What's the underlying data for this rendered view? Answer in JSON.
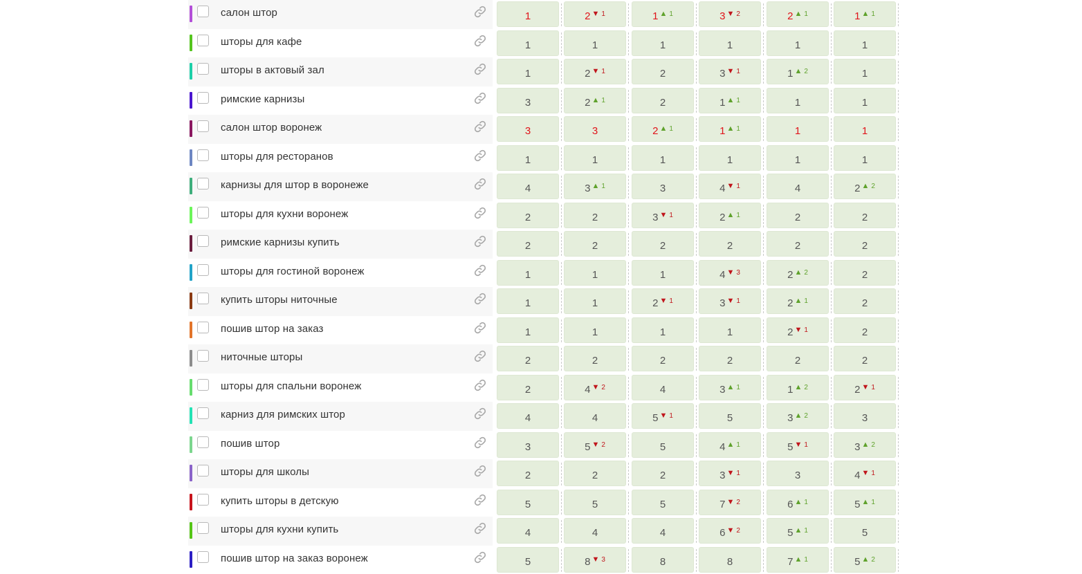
{
  "colors": {
    "cell_bg": "#e5eedc",
    "top_position": "#e0141a",
    "up": "#5fa22c",
    "down": "#c0161c"
  },
  "icons": {
    "link": "link-icon",
    "up": "triangle-up-icon",
    "down": "triangle-down-icon"
  },
  "rows": [
    {
      "keyword": "салон штор",
      "color": "#b34fd8",
      "cells": [
        {
          "pos": "1",
          "dir": "",
          "delta": ""
        },
        {
          "pos": "2",
          "dir": "down",
          "delta": "1"
        },
        {
          "pos": "1",
          "dir": "up",
          "delta": "1"
        },
        {
          "pos": "3",
          "dir": "down",
          "delta": "2"
        },
        {
          "pos": "2",
          "dir": "up",
          "delta": "1"
        },
        {
          "pos": "1",
          "dir": "up",
          "delta": "1"
        }
      ]
    },
    {
      "keyword": "шторы для кафе",
      "color": "#55c51e",
      "cells": [
        {
          "pos": "1",
          "dir": "",
          "delta": ""
        },
        {
          "pos": "1",
          "dir": "",
          "delta": ""
        },
        {
          "pos": "1",
          "dir": "",
          "delta": ""
        },
        {
          "pos": "1",
          "dir": "",
          "delta": ""
        },
        {
          "pos": "1",
          "dir": "",
          "delta": ""
        },
        {
          "pos": "1",
          "dir": "",
          "delta": ""
        }
      ]
    },
    {
      "keyword": "шторы в актовый зал",
      "color": "#1ccfa8",
      "cells": [
        {
          "pos": "1",
          "dir": "",
          "delta": ""
        },
        {
          "pos": "2",
          "dir": "down",
          "delta": "1"
        },
        {
          "pos": "2",
          "dir": "",
          "delta": ""
        },
        {
          "pos": "3",
          "dir": "down",
          "delta": "1"
        },
        {
          "pos": "1",
          "dir": "up",
          "delta": "2"
        },
        {
          "pos": "1",
          "dir": "",
          "delta": ""
        }
      ]
    },
    {
      "keyword": "римские карнизы",
      "color": "#4a16cf",
      "cells": [
        {
          "pos": "3",
          "dir": "",
          "delta": ""
        },
        {
          "pos": "2",
          "dir": "up",
          "delta": "1"
        },
        {
          "pos": "2",
          "dir": "",
          "delta": ""
        },
        {
          "pos": "1",
          "dir": "up",
          "delta": "1"
        },
        {
          "pos": "1",
          "dir": "",
          "delta": ""
        },
        {
          "pos": "1",
          "dir": "",
          "delta": ""
        }
      ]
    },
    {
      "keyword": "салон штор воронеж",
      "color": "#8a1760",
      "cells": [
        {
          "pos": "3",
          "dir": "",
          "delta": ""
        },
        {
          "pos": "3",
          "dir": "",
          "delta": ""
        },
        {
          "pos": "2",
          "dir": "up",
          "delta": "1"
        },
        {
          "pos": "1",
          "dir": "up",
          "delta": "1"
        },
        {
          "pos": "1",
          "dir": "",
          "delta": ""
        },
        {
          "pos": "1",
          "dir": "",
          "delta": ""
        }
      ]
    },
    {
      "keyword": "шторы для ресторанов",
      "color": "#6d86c2",
      "cells": [
        {
          "pos": "1",
          "dir": "",
          "delta": ""
        },
        {
          "pos": "1",
          "dir": "",
          "delta": ""
        },
        {
          "pos": "1",
          "dir": "",
          "delta": ""
        },
        {
          "pos": "1",
          "dir": "",
          "delta": ""
        },
        {
          "pos": "1",
          "dir": "",
          "delta": ""
        },
        {
          "pos": "1",
          "dir": "",
          "delta": ""
        }
      ]
    },
    {
      "keyword": "карнизы для штор в воронеже",
      "color": "#3fae7c",
      "cells": [
        {
          "pos": "4",
          "dir": "",
          "delta": ""
        },
        {
          "pos": "3",
          "dir": "up",
          "delta": "1"
        },
        {
          "pos": "3",
          "dir": "",
          "delta": ""
        },
        {
          "pos": "4",
          "dir": "down",
          "delta": "1"
        },
        {
          "pos": "4",
          "dir": "",
          "delta": ""
        },
        {
          "pos": "2",
          "dir": "up",
          "delta": "2"
        }
      ]
    },
    {
      "keyword": "шторы для кухни воронеж",
      "color": "#6cf55a",
      "cells": [
        {
          "pos": "2",
          "dir": "",
          "delta": ""
        },
        {
          "pos": "2",
          "dir": "",
          "delta": ""
        },
        {
          "pos": "3",
          "dir": "down",
          "delta": "1"
        },
        {
          "pos": "2",
          "dir": "up",
          "delta": "1"
        },
        {
          "pos": "2",
          "dir": "",
          "delta": ""
        },
        {
          "pos": "2",
          "dir": "",
          "delta": ""
        }
      ]
    },
    {
      "keyword": "римские карнизы купить",
      "color": "#6b1d3e",
      "cells": [
        {
          "pos": "2",
          "dir": "",
          "delta": ""
        },
        {
          "pos": "2",
          "dir": "",
          "delta": ""
        },
        {
          "pos": "2",
          "dir": "",
          "delta": ""
        },
        {
          "pos": "2",
          "dir": "",
          "delta": ""
        },
        {
          "pos": "2",
          "dir": "",
          "delta": ""
        },
        {
          "pos": "2",
          "dir": "",
          "delta": ""
        }
      ]
    },
    {
      "keyword": "шторы для гостиной воронеж",
      "color": "#21a3c8",
      "cells": [
        {
          "pos": "1",
          "dir": "",
          "delta": ""
        },
        {
          "pos": "1",
          "dir": "",
          "delta": ""
        },
        {
          "pos": "1",
          "dir": "",
          "delta": ""
        },
        {
          "pos": "4",
          "dir": "down",
          "delta": "3"
        },
        {
          "pos": "2",
          "dir": "up",
          "delta": "2"
        },
        {
          "pos": "2",
          "dir": "",
          "delta": ""
        }
      ]
    },
    {
      "keyword": "купить шторы ниточные",
      "color": "#8a3a12",
      "cells": [
        {
          "pos": "1",
          "dir": "",
          "delta": ""
        },
        {
          "pos": "1",
          "dir": "",
          "delta": ""
        },
        {
          "pos": "2",
          "dir": "down",
          "delta": "1"
        },
        {
          "pos": "3",
          "dir": "down",
          "delta": "1"
        },
        {
          "pos": "2",
          "dir": "up",
          "delta": "1"
        },
        {
          "pos": "2",
          "dir": "",
          "delta": ""
        }
      ]
    },
    {
      "keyword": "пошив штор на заказ",
      "color": "#e2742a",
      "cells": [
        {
          "pos": "1",
          "dir": "",
          "delta": ""
        },
        {
          "pos": "1",
          "dir": "",
          "delta": ""
        },
        {
          "pos": "1",
          "dir": "",
          "delta": ""
        },
        {
          "pos": "1",
          "dir": "",
          "delta": ""
        },
        {
          "pos": "2",
          "dir": "down",
          "delta": "1"
        },
        {
          "pos": "2",
          "dir": "",
          "delta": ""
        }
      ]
    },
    {
      "keyword": "ниточные шторы",
      "color": "#8c8c8c",
      "cells": [
        {
          "pos": "2",
          "dir": "",
          "delta": ""
        },
        {
          "pos": "2",
          "dir": "",
          "delta": ""
        },
        {
          "pos": "2",
          "dir": "",
          "delta": ""
        },
        {
          "pos": "2",
          "dir": "",
          "delta": ""
        },
        {
          "pos": "2",
          "dir": "",
          "delta": ""
        },
        {
          "pos": "2",
          "dir": "",
          "delta": ""
        }
      ]
    },
    {
      "keyword": "шторы для спальни воронеж",
      "color": "#67dd6e",
      "cells": [
        {
          "pos": "2",
          "dir": "",
          "delta": ""
        },
        {
          "pos": "4",
          "dir": "down",
          "delta": "2"
        },
        {
          "pos": "4",
          "dir": "",
          "delta": ""
        },
        {
          "pos": "3",
          "dir": "up",
          "delta": "1"
        },
        {
          "pos": "1",
          "dir": "up",
          "delta": "2"
        },
        {
          "pos": "2",
          "dir": "down",
          "delta": "1"
        }
      ]
    },
    {
      "keyword": "карниз для римских штор",
      "color": "#23e2b4",
      "cells": [
        {
          "pos": "4",
          "dir": "",
          "delta": ""
        },
        {
          "pos": "4",
          "dir": "",
          "delta": ""
        },
        {
          "pos": "5",
          "dir": "down",
          "delta": "1"
        },
        {
          "pos": "5",
          "dir": "",
          "delta": ""
        },
        {
          "pos": "3",
          "dir": "up",
          "delta": "2"
        },
        {
          "pos": "3",
          "dir": "",
          "delta": ""
        }
      ]
    },
    {
      "keyword": "пошив штор",
      "color": "#7cd68e",
      "cells": [
        {
          "pos": "3",
          "dir": "",
          "delta": ""
        },
        {
          "pos": "5",
          "dir": "down",
          "delta": "2"
        },
        {
          "pos": "5",
          "dir": "",
          "delta": ""
        },
        {
          "pos": "4",
          "dir": "up",
          "delta": "1"
        },
        {
          "pos": "5",
          "dir": "down",
          "delta": "1"
        },
        {
          "pos": "3",
          "dir": "up",
          "delta": "2"
        }
      ]
    },
    {
      "keyword": "шторы для школы",
      "color": "#8a63c9",
      "cells": [
        {
          "pos": "2",
          "dir": "",
          "delta": ""
        },
        {
          "pos": "2",
          "dir": "",
          "delta": ""
        },
        {
          "pos": "2",
          "dir": "",
          "delta": ""
        },
        {
          "pos": "3",
          "dir": "down",
          "delta": "1"
        },
        {
          "pos": "3",
          "dir": "",
          "delta": ""
        },
        {
          "pos": "4",
          "dir": "down",
          "delta": "1"
        }
      ]
    },
    {
      "keyword": "купить шторы в детскую",
      "color": "#c8141c",
      "cells": [
        {
          "pos": "5",
          "dir": "",
          "delta": ""
        },
        {
          "pos": "5",
          "dir": "",
          "delta": ""
        },
        {
          "pos": "5",
          "dir": "",
          "delta": ""
        },
        {
          "pos": "7",
          "dir": "down",
          "delta": "2"
        },
        {
          "pos": "6",
          "dir": "up",
          "delta": "1"
        },
        {
          "pos": "5",
          "dir": "up",
          "delta": "1"
        }
      ]
    },
    {
      "keyword": "шторы для кухни купить",
      "color": "#55c516",
      "cells": [
        {
          "pos": "4",
          "dir": "",
          "delta": ""
        },
        {
          "pos": "4",
          "dir": "",
          "delta": ""
        },
        {
          "pos": "4",
          "dir": "",
          "delta": ""
        },
        {
          "pos": "6",
          "dir": "down",
          "delta": "2"
        },
        {
          "pos": "5",
          "dir": "up",
          "delta": "1"
        },
        {
          "pos": "5",
          "dir": "",
          "delta": ""
        }
      ]
    },
    {
      "keyword": "пошив штор на заказ воронеж",
      "color": "#2c1ec4",
      "cells": [
        {
          "pos": "5",
          "dir": "",
          "delta": ""
        },
        {
          "pos": "8",
          "dir": "down",
          "delta": "3"
        },
        {
          "pos": "8",
          "dir": "",
          "delta": ""
        },
        {
          "pos": "8",
          "dir": "",
          "delta": ""
        },
        {
          "pos": "7",
          "dir": "up",
          "delta": "1"
        },
        {
          "pos": "5",
          "dir": "up",
          "delta": "2"
        }
      ]
    }
  ]
}
